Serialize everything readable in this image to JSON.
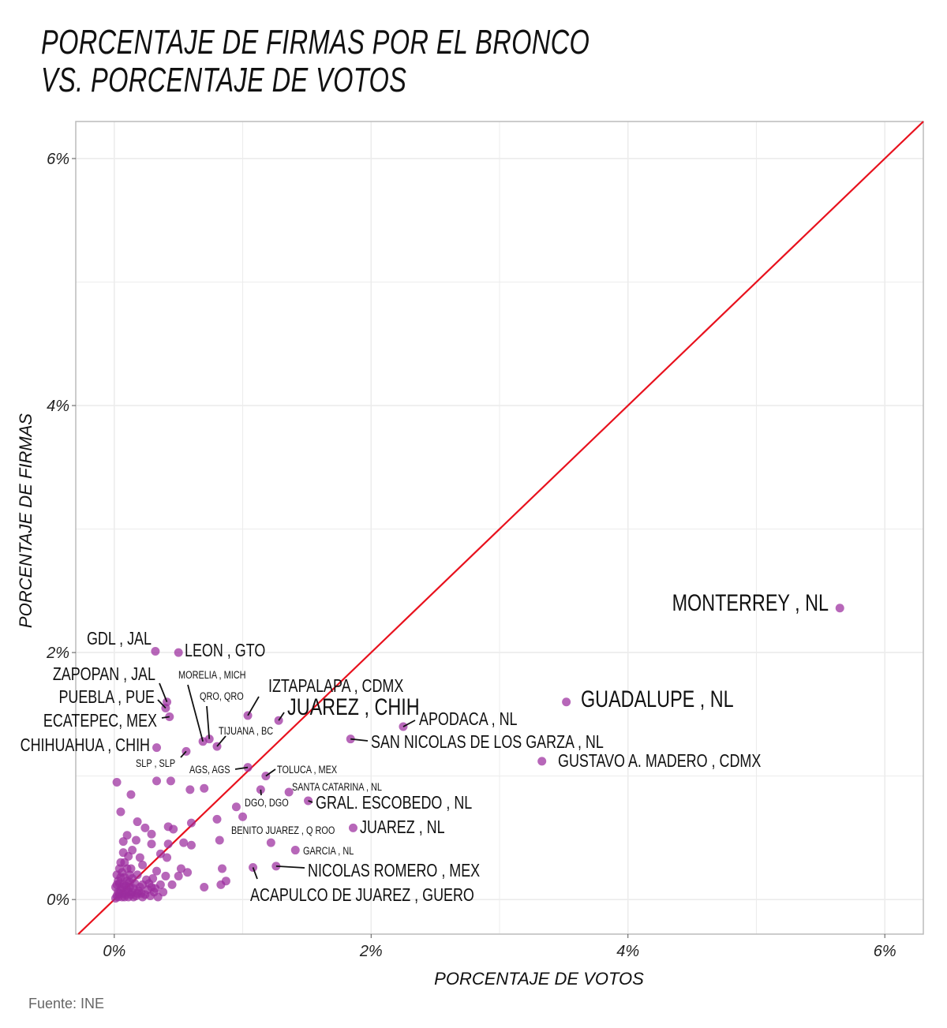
{
  "title_lines": [
    "PORCENTAJE DE FIRMAS POR EL BRONCO",
    "VS. PORCENTAJE DE VOTOS"
  ],
  "source": "Fuente: INE",
  "chart_data": {
    "type": "scatter",
    "title": "PORCENTAJE DE FIRMAS POR EL BRONCO VS. PORCENTAJE DE VOTOS",
    "xlabel": "PORCENTAJE DE VOTOS",
    "ylabel": "PORCENTAJE DE FIRMAS",
    "xlim": [
      -0.3,
      6.3
    ],
    "ylim": [
      -0.28,
      6.3
    ],
    "x_ticks": [
      0,
      2,
      4,
      6
    ],
    "x_tick_labels": [
      "0%",
      "2%",
      "4%",
      "6%"
    ],
    "y_ticks": [
      0,
      2,
      4,
      6
    ],
    "y_tick_labels": [
      "0%",
      "2%",
      "4%",
      "6%"
    ],
    "grid": true,
    "reference_line": {
      "label": "y = x",
      "color": "#e8111d"
    },
    "point_color": "#9b2c9e",
    "labeled_points": [
      {
        "name": "MONTERREY , NL",
        "x": 5.65,
        "y": 2.36
      },
      {
        "name": "GUADALUPE , NL",
        "x": 3.52,
        "y": 1.6
      },
      {
        "name": "GUSTAVO A. MADERO , CDMX",
        "x": 3.33,
        "y": 1.12
      },
      {
        "name": "APODACA , NL",
        "x": 2.25,
        "y": 1.4
      },
      {
        "name": "SAN NICOLAS DE LOS GARZA , NL",
        "x": 1.84,
        "y": 1.3
      },
      {
        "name": "JUAREZ , NL",
        "x": 1.86,
        "y": 0.58
      },
      {
        "name": "GRAL. ESCOBEDO , NL",
        "x": 1.51,
        "y": 0.8
      },
      {
        "name": "SANTA CATARINA , NL",
        "x": 1.36,
        "y": 0.87
      },
      {
        "name": "GARCIA , NL",
        "x": 1.41,
        "y": 0.4
      },
      {
        "name": "NICOLAS ROMERO , MEX",
        "x": 1.26,
        "y": 0.27
      },
      {
        "name": "ACAPULCO DE JUAREZ , GUERO",
        "x": 1.08,
        "y": 0.26
      },
      {
        "name": "BENITO JUAREZ , Q ROO",
        "x": 1.22,
        "y": 0.46
      },
      {
        "name": "DGO, DGO",
        "x": 1.14,
        "y": 0.89
      },
      {
        "name": "TOLUCA , MEX",
        "x": 1.18,
        "y": 1.0
      },
      {
        "name": "AGS, AGS",
        "x": 1.04,
        "y": 1.07
      },
      {
        "name": "JUAREZ , CHIH",
        "x": 1.28,
        "y": 1.45
      },
      {
        "name": "IZTAPALAPA , CDMX",
        "x": 1.04,
        "y": 1.49
      },
      {
        "name": "TIJUANA , BC",
        "x": 0.8,
        "y": 1.24
      },
      {
        "name": "QRO, QRO",
        "x": 0.74,
        "y": 1.3
      },
      {
        "name": "MORELIA , MICH",
        "x": 0.69,
        "y": 1.28
      },
      {
        "name": "SLP , SLP",
        "x": 0.56,
        "y": 1.2
      },
      {
        "name": "LEON , GTO",
        "x": 0.5,
        "y": 2.0
      },
      {
        "name": "GDL , JAL",
        "x": 0.32,
        "y": 2.01
      },
      {
        "name": "ZAPOPAN , JAL",
        "x": 0.41,
        "y": 1.6
      },
      {
        "name": "PUEBLA , PUE",
        "x": 0.4,
        "y": 1.55
      },
      {
        "name": "ECATEPEC, MEX",
        "x": 0.43,
        "y": 1.48
      },
      {
        "name": "CHIHUAHUA , CHIH",
        "x": 0.33,
        "y": 1.23
      }
    ],
    "other_points": [
      [
        0.02,
        0.95
      ],
      [
        0.13,
        0.85
      ],
      [
        0.05,
        0.71
      ],
      [
        0.33,
        0.96
      ],
      [
        0.44,
        0.96
      ],
      [
        0.59,
        0.89
      ],
      [
        0.7,
        0.9
      ],
      [
        0.8,
        0.65
      ],
      [
        0.95,
        0.75
      ],
      [
        1.0,
        0.67
      ],
      [
        0.18,
        0.63
      ],
      [
        0.24,
        0.58
      ],
      [
        0.29,
        0.53
      ],
      [
        0.42,
        0.59
      ],
      [
        0.46,
        0.57
      ],
      [
        0.6,
        0.62
      ],
      [
        0.54,
        0.46
      ],
      [
        0.6,
        0.44
      ],
      [
        0.42,
        0.45
      ],
      [
        0.29,
        0.45
      ],
      [
        0.36,
        0.37
      ],
      [
        0.41,
        0.34
      ],
      [
        0.52,
        0.25
      ],
      [
        0.57,
        0.22
      ],
      [
        0.82,
        0.48
      ],
      [
        0.84,
        0.25
      ],
      [
        0.87,
        0.15
      ],
      [
        0.83,
        0.12
      ],
      [
        0.7,
        0.1
      ],
      [
        0.5,
        0.19
      ],
      [
        0.4,
        0.19
      ],
      [
        0.33,
        0.23
      ],
      [
        0.36,
        0.12
      ],
      [
        0.29,
        0.1
      ],
      [
        0.26,
        0.08
      ],
      [
        0.22,
        0.28
      ],
      [
        0.2,
        0.34
      ],
      [
        0.22,
        0.12
      ],
      [
        0.18,
        0.2
      ],
      [
        0.17,
        0.48
      ],
      [
        0.14,
        0.4
      ],
      [
        0.1,
        0.52
      ],
      [
        0.07,
        0.47
      ],
      [
        0.07,
        0.38
      ],
      [
        0.05,
        0.3
      ],
      [
        0.11,
        0.35
      ],
      [
        0.14,
        0.17
      ],
      [
        0.12,
        0.1
      ],
      [
        0.1,
        0.25
      ],
      [
        0.08,
        0.18
      ],
      [
        0.06,
        0.22
      ],
      [
        0.04,
        0.13
      ],
      [
        0.03,
        0.06
      ],
      [
        0.02,
        0.03
      ],
      [
        0.01,
        0.01
      ],
      [
        0.03,
        0.15
      ],
      [
        0.05,
        0.08
      ],
      [
        0.07,
        0.05
      ],
      [
        0.09,
        0.11
      ],
      [
        0.11,
        0.06
      ],
      [
        0.13,
        0.04
      ],
      [
        0.15,
        0.09
      ],
      [
        0.17,
        0.03
      ],
      [
        0.19,
        0.07
      ],
      [
        0.21,
        0.05
      ],
      [
        0.24,
        0.04
      ],
      [
        0.27,
        0.13
      ],
      [
        0.31,
        0.06
      ],
      [
        0.34,
        0.02
      ],
      [
        0.02,
        0.2
      ],
      [
        0.04,
        0.25
      ],
      [
        0.06,
        0.1
      ],
      [
        0.08,
        0.02
      ],
      [
        0.1,
        0.15
      ],
      [
        0.12,
        0.2
      ],
      [
        0.01,
        0.1
      ],
      [
        0.02,
        0.12
      ],
      [
        0.03,
        0.02
      ],
      [
        0.04,
        0.05
      ],
      [
        0.05,
        0.18
      ],
      [
        0.06,
        0.02
      ],
      [
        0.07,
        0.12
      ],
      [
        0.08,
        0.3
      ],
      [
        0.09,
        0.04
      ],
      [
        0.1,
        0.08
      ],
      [
        0.11,
        0.02
      ],
      [
        0.12,
        0.14
      ],
      [
        0.13,
        0.25
      ],
      [
        0.14,
        0.06
      ],
      [
        0.15,
        0.02
      ],
      [
        0.16,
        0.13
      ],
      [
        0.18,
        0.05
      ],
      [
        0.2,
        0.1
      ],
      [
        0.22,
        0.02
      ],
      [
        0.25,
        0.16
      ],
      [
        0.28,
        0.03
      ],
      [
        0.3,
        0.17
      ],
      [
        0.32,
        0.09
      ],
      [
        0.38,
        0.06
      ],
      [
        0.45,
        0.12
      ]
    ]
  }
}
